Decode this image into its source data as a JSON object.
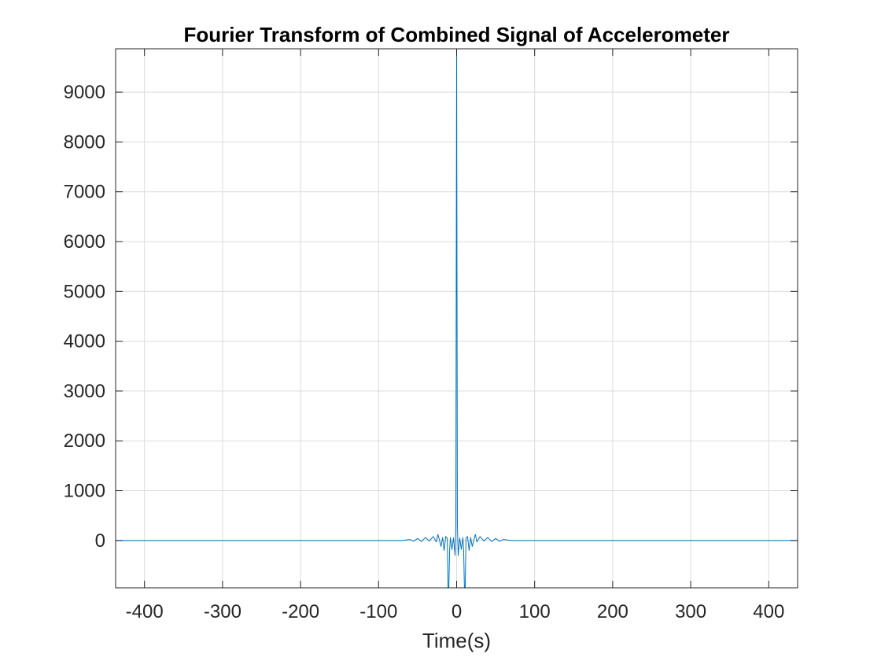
{
  "chart_data": {
    "type": "line",
    "title": "Fourier Transform of Combined Signal of Accelerometer",
    "xlabel": "Time(s)",
    "ylabel": "",
    "xlim": [
      -437,
      437
    ],
    "ylim": [
      -950,
      9870
    ],
    "x_ticks": [
      -400,
      -300,
      -200,
      -100,
      0,
      100,
      200,
      300,
      400
    ],
    "x_tick_labels": [
      "-400",
      "-300",
      "-200",
      "-100",
      "0",
      "100",
      "200",
      "300",
      "400"
    ],
    "y_ticks": [
      0,
      1000,
      2000,
      3000,
      4000,
      5000,
      6000,
      7000,
      8000,
      9000
    ],
    "y_tick_labels": [
      "0",
      "1000",
      "2000",
      "3000",
      "4000",
      "5000",
      "6000",
      "7000",
      "8000",
      "9000"
    ],
    "grid": true,
    "series": [
      {
        "color": "#0072BD",
        "x": [
          -437,
          -70,
          -60,
          -55,
          -50,
          -45,
          -40,
          -35,
          -30,
          -26,
          -24,
          -22,
          -20,
          -18,
          -16,
          -14,
          -12,
          -11,
          -10,
          -9,
          -8,
          -6,
          -4,
          -2,
          -1,
          0,
          1,
          2,
          4,
          6,
          8,
          9,
          10,
          11,
          12,
          14,
          16,
          18,
          20,
          22,
          24,
          26,
          30,
          35,
          40,
          45,
          50,
          55,
          60,
          65,
          70,
          437
        ],
        "y": [
          0,
          0,
          20,
          -15,
          40,
          -20,
          60,
          -10,
          80,
          -30,
          120,
          10,
          -120,
          60,
          -200,
          80,
          40,
          -950,
          -950,
          -200,
          60,
          -180,
          50,
          -300,
          300,
          9870,
          300,
          -300,
          50,
          -180,
          60,
          -200,
          -950,
          -950,
          40,
          80,
          -200,
          60,
          -120,
          10,
          120,
          -30,
          80,
          -10,
          60,
          -20,
          40,
          -15,
          20,
          10,
          0,
          0
        ]
      }
    ]
  }
}
